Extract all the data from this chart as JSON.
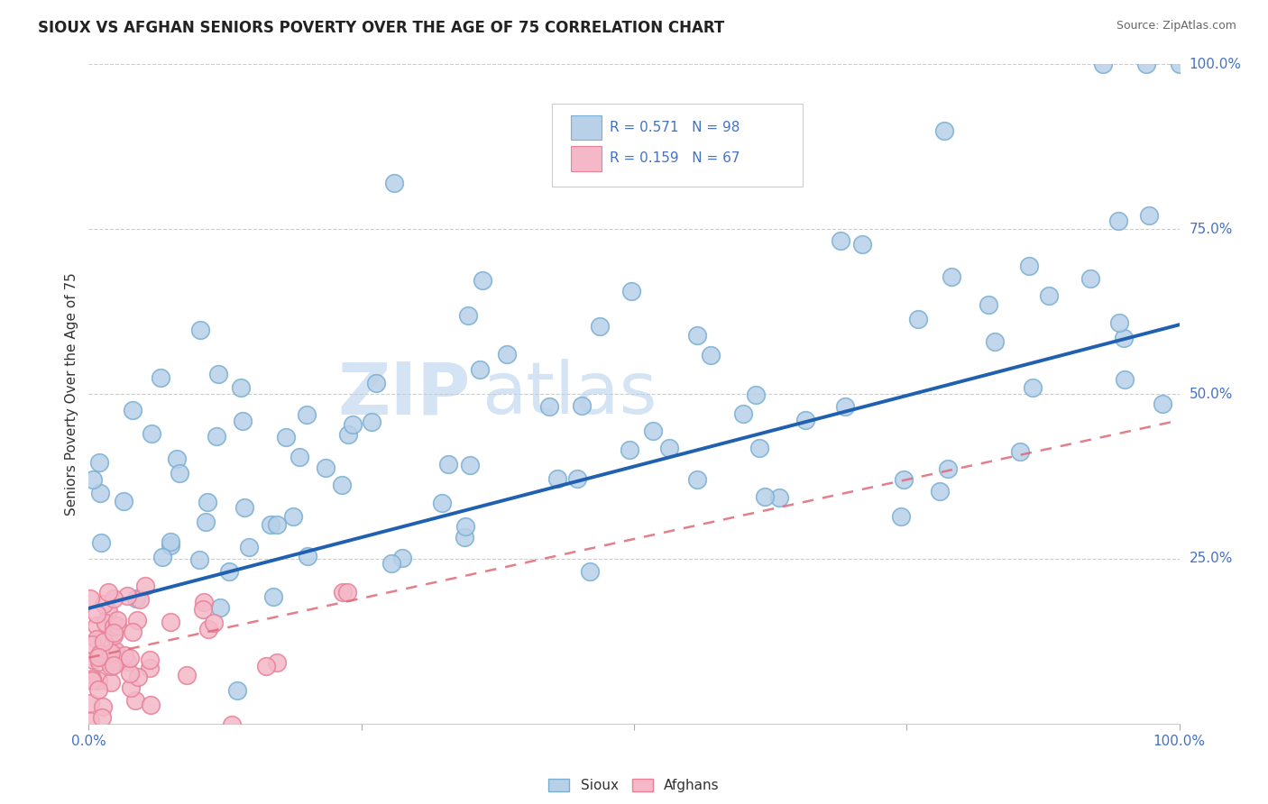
{
  "title": "SIOUX VS AFGHAN SENIORS POVERTY OVER THE AGE OF 75 CORRELATION CHART",
  "source": "Source: ZipAtlas.com",
  "ylabel": "Seniors Poverty Over the Age of 75",
  "sioux_R": 0.571,
  "sioux_N": 98,
  "afghan_R": 0.159,
  "afghan_N": 67,
  "sioux_color": "#b8d0e8",
  "sioux_edge": "#7aafd4",
  "afghan_color": "#f4b8c8",
  "afghan_edge": "#e88098",
  "trend_sioux_color": "#2060b0",
  "trend_afghan_color": "#e06878",
  "watermark_zip": "ZIP",
  "watermark_atlas": "atlas",
  "background": "#ffffff"
}
